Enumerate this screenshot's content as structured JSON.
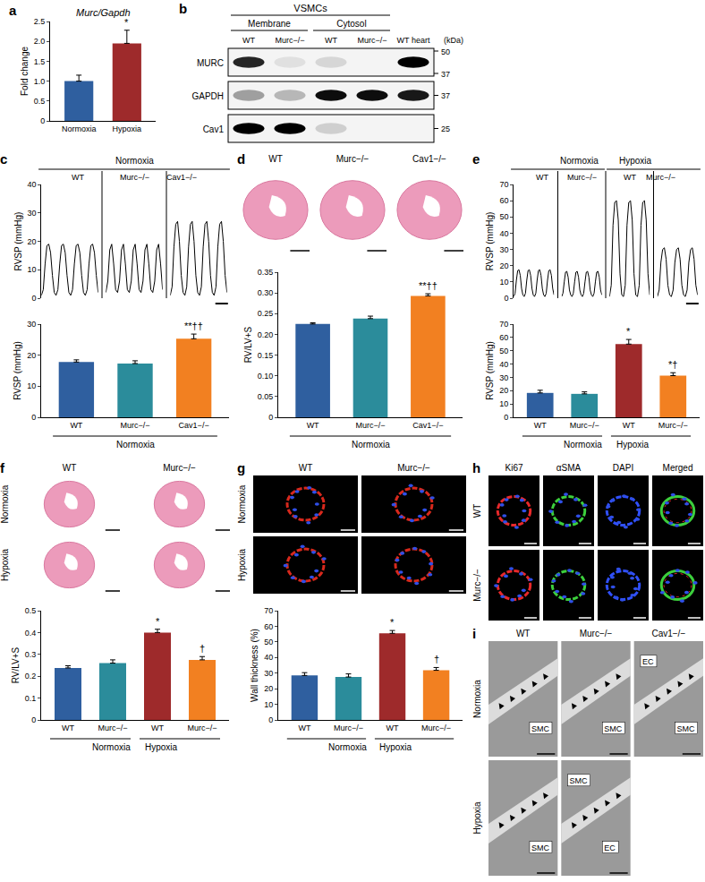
{
  "chart_data": [
    {
      "panel": "a",
      "type": "bar",
      "title": "Murc/Gapdh",
      "categories": [
        "Normoxia",
        "Hypoxia"
      ],
      "values": [
        1.0,
        1.95
      ],
      "errors": [
        0.15,
        0.33
      ],
      "colors": [
        "#2f5f9f",
        "#9e2a2b"
      ],
      "annotations": [
        null,
        "*"
      ],
      "ylabel": "Fold change",
      "ylim": [
        0,
        2.5
      ],
      "yticks": [
        0,
        0.5,
        {
          "value": 1,
          "label": "1.0"
        },
        1.5,
        {
          "value": 2,
          "label": "2.0"
        },
        2.5
      ]
    },
    {
      "panel": "c",
      "type": "line",
      "tick_labels": "y",
      "group": [
        "Normoxia",
        "Normoxia",
        "Normoxia"
      ],
      "series": [
        {
          "name": "WT",
          "color": "#000000",
          "values": [
            1,
            3,
            12,
            18.5,
            19,
            16,
            8,
            2,
            1,
            3,
            12,
            18.5,
            19,
            16,
            8,
            2,
            1,
            3,
            12,
            18.5,
            19,
            16,
            8,
            2,
            1,
            3,
            12,
            18.5,
            19,
            16,
            8,
            2
          ]
        },
        {
          "name": "Murc−/−",
          "color": "#000000",
          "values": [
            2,
            6,
            17,
            19,
            12,
            3,
            2,
            6,
            17,
            19,
            12,
            3,
            2,
            6,
            17,
            19,
            12,
            3,
            2,
            6,
            17,
            19,
            12,
            3,
            2,
            6,
            17,
            19,
            12,
            3
          ]
        },
        {
          "name": "Cav1−/−",
          "color": "#000000",
          "values": [
            1,
            4,
            18,
            26,
            27,
            20,
            8,
            2,
            1,
            4,
            18,
            26,
            27,
            20,
            8,
            2,
            1,
            4,
            18,
            26,
            27,
            20,
            8,
            2,
            1,
            4,
            18,
            26,
            27,
            20,
            8,
            2
          ]
        }
      ],
      "ylabel": "RVSP (mmHg)",
      "ylim": [
        0,
        40
      ],
      "yticks": [
        0,
        10,
        20,
        30,
        40
      ]
    },
    {
      "type": "bar",
      "categories": [
        "WT",
        "Murc−/−",
        "Cav1−/−"
      ],
      "group": [
        "Normoxia",
        "Normoxia",
        "Normoxia"
      ],
      "values": [
        17.8,
        17.3,
        25.3
      ],
      "errors": [
        0.7,
        0.9,
        1.5
      ],
      "colors": [
        "#2f5f9f",
        "#2b8c9b",
        "#f28021"
      ],
      "annotations": [
        null,
        null,
        "**††"
      ],
      "ylabel": "RVSP (mmHg)",
      "ylim": [
        0,
        30
      ],
      "yticks": [
        0,
        10,
        20,
        30
      ]
    },
    {
      "type": "bar",
      "categories": [
        "WT",
        "Murc−/−",
        "Cav1−/−"
      ],
      "group": [
        "Normoxia",
        "Normoxia",
        "Normoxia"
      ],
      "values": [
        0.225,
        0.238,
        0.293
      ],
      "errors": [
        0.003,
        0.006,
        0.005
      ],
      "colors": [
        "#2f5f9f",
        "#2b8c9b",
        "#f28021"
      ],
      "annotations": [
        null,
        null,
        "**††"
      ],
      "ylabel": "RV/LV+S",
      "ylim": [
        0,
        0.35
      ],
      "yticks": [
        0,
        0.05,
        {
          "value": 0.1,
          "label": "0.10"
        },
        0.15,
        {
          "value": 0.2,
          "label": "0.20"
        },
        0.25,
        {
          "value": 0.3,
          "label": "0.30"
        },
        0.35
      ]
    },
    {
      "panel": "e",
      "type": "line",
      "tick_labels": "y",
      "group": [
        "Normoxia",
        "Normoxia",
        "Hypoxia",
        "Hypoxia"
      ],
      "series": [
        {
          "name": "WT",
          "color": "#000000",
          "values": [
            1,
            3,
            11,
            17,
            17.5,
            14,
            6,
            2,
            1,
            3,
            11,
            17,
            17.5,
            14,
            6,
            2,
            1,
            3,
            11,
            17,
            17.5,
            14,
            6,
            2,
            1,
            3,
            11,
            17,
            17.5,
            14,
            6,
            2
          ]
        },
        {
          "name": "Murc−/−",
          "color": "#000000",
          "values": [
            1,
            3,
            10,
            16,
            16.5,
            13,
            5,
            2,
            1,
            3,
            10,
            16,
            16.5,
            13,
            5,
            2,
            1,
            3,
            10,
            16,
            16.5,
            13,
            5,
            2,
            1,
            3,
            10,
            16,
            16.5,
            13,
            5,
            2
          ]
        },
        {
          "name": "WT",
          "color": "#000000",
          "values": [
            1,
            8,
            45,
            59,
            60,
            48,
            15,
            2,
            1,
            8,
            45,
            59,
            60,
            48,
            15,
            2,
            1,
            8,
            45,
            59,
            60,
            48,
            15,
            2
          ]
        },
        {
          "name": "Murc−/−",
          "color": "#000000",
          "values": [
            1,
            5,
            22,
            30,
            31,
            24,
            8,
            2,
            1,
            5,
            22,
            30,
            31,
            24,
            8,
            2,
            1,
            5,
            22,
            30,
            31,
            24,
            8,
            2
          ]
        }
      ],
      "ylabel": "RVSP (mmHg)",
      "ylim": [
        0,
        70
      ],
      "yticks": [
        0,
        10,
        20,
        30,
        40,
        50,
        60,
        70
      ]
    },
    {
      "type": "bar",
      "categories": [
        "WT",
        "Murc−/−",
        "WT",
        "Murc−/−"
      ],
      "group": [
        "Normoxia",
        "Normoxia",
        "Hypoxia",
        "Hypoxia"
      ],
      "values": [
        18.3,
        17.6,
        55.0,
        31.3
      ],
      "errors": [
        2.0,
        1.5,
        3.5,
        2.2
      ],
      "colors": [
        "#2f5f9f",
        "#2b8c9b",
        "#9e2a2b",
        "#f28021"
      ],
      "annotations": [
        null,
        null,
        "*",
        "*†"
      ],
      "ylabel": "RVSP (mmHg)",
      "ylim": [
        0,
        70
      ],
      "yticks": [
        0,
        10,
        20,
        30,
        40,
        50,
        60,
        70
      ]
    },
    {
      "type": "bar",
      "categories": [
        "WT",
        "Murc−/−",
        "WT",
        "Murc−/−"
      ],
      "group": [
        "Normoxia",
        "Normoxia",
        "Hypoxia",
        "Hypoxia"
      ],
      "values": [
        0.238,
        0.26,
        0.4,
        0.275
      ],
      "errors": [
        0.01,
        0.015,
        0.015,
        0.015
      ],
      "colors": [
        "#2f5f9f",
        "#2b8c9b",
        "#9e2a2b",
        "#f28021"
      ],
      "annotations": [
        null,
        null,
        "*",
        "†"
      ],
      "ylabel": "RV/LV+S",
      "ylim": [
        0,
        0.5
      ],
      "yticks": [
        0,
        0.1,
        0.2,
        0.3,
        0.4,
        0.5
      ]
    },
    {
      "type": "bar",
      "categories": [
        "WT",
        "Murc−/−",
        "WT",
        "Murc−/−"
      ],
      "group": [
        "Normoxia",
        "Normoxia",
        "Hypoxia",
        "Hypoxia"
      ],
      "values": [
        28.5,
        27.5,
        55.5,
        31.8
      ],
      "errors": [
        1.8,
        2.0,
        1.8,
        1.8
      ],
      "colors": [
        "#2f5f9f",
        "#2b8c9b",
        "#9e2a2b",
        "#f28021"
      ],
      "annotations": [
        null,
        null,
        "*",
        "†"
      ],
      "ylabel": "Wall thickness (%)",
      "ylim": [
        0,
        70
      ],
      "yticks": [
        0,
        10,
        20,
        30,
        40,
        50,
        60,
        70
      ]
    }
  ],
  "blot": {
    "panel": "b",
    "title": "VSMCs",
    "lane_groups": [
      "Membrane",
      "Membrane",
      "Cytosol",
      "Cytosol",
      null
    ],
    "lanes": [
      "WT",
      "Murc−/−",
      "WT",
      "Murc−/−",
      "WT heart"
    ],
    "unit": "(kDa)",
    "rows": [
      {
        "label": "MURC",
        "bands": [
          0.85,
          0.08,
          0.12,
          0.0,
          1.0
        ],
        "markers": [
          50,
          37
        ]
      },
      {
        "label": "GAPDH",
        "bands": [
          0.35,
          0.25,
          0.95,
          0.95,
          0.9
        ],
        "markers": [
          37
        ]
      },
      {
        "label": "Cav1",
        "bands": [
          1.0,
          1.0,
          0.15,
          0.0,
          0.0
        ],
        "markers": [
          25
        ]
      }
    ]
  },
  "image_panels": [
    {
      "panel": "d",
      "type": "section",
      "columns": [
        "WT",
        "Murc−/−",
        "Cav1−/−"
      ]
    },
    {
      "panel": "f",
      "type": "section",
      "columns": [
        "WT",
        "Murc−/−"
      ],
      "rows": [
        "Normoxia",
        "Hypoxia"
      ]
    },
    {
      "panel": "g",
      "type": "fluorescence",
      "columns": [
        "WT",
        "Murc−/−"
      ],
      "rows": [
        "Normoxia",
        "Hypoxia"
      ],
      "colors": [
        "#d8281c",
        "#d8281c"
      ]
    },
    {
      "panel": "h",
      "type": "fluorescence",
      "columns": [
        "Ki67",
        "αSMA",
        "DAPI",
        "Merged"
      ],
      "rows": [
        "WT",
        "Murc−/−"
      ],
      "colors": [
        "#e8282a",
        "#3ccf3c",
        "#3050ff",
        null
      ]
    },
    {
      "panel": "i",
      "type": "micrograph",
      "columns": [
        "WT",
        "Murc−/−",
        "Cav1−/−"
      ],
      "rows": [
        "Normoxia",
        "Hypoxia"
      ],
      "cells": [
        [
          [
            "SMC"
          ],
          [
            "SMC"
          ],
          [
            "SMC",
            "EC"
          ]
        ],
        [
          [
            "SMC"
          ],
          [
            "EC",
            "SMC"
          ],
          null
        ]
      ]
    }
  ]
}
